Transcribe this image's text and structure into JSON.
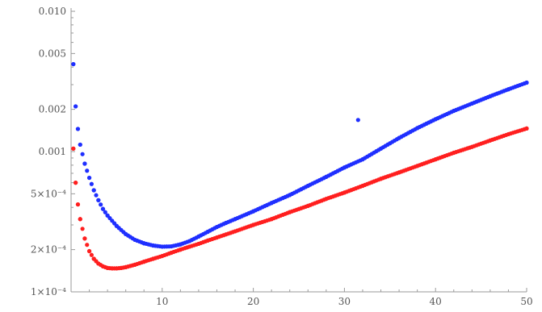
{
  "chart_data": {
    "type": "scatter",
    "title": "",
    "xlabel": "",
    "ylabel": "",
    "x_scale": "linear",
    "y_scale": "log",
    "xlim": [
      0,
      50
    ],
    "ylim": [
      0.0001,
      0.01
    ],
    "grid": false,
    "x_ticks": [
      {
        "value": 10,
        "label": "10"
      },
      {
        "value": 20,
        "label": "20"
      },
      {
        "value": 30,
        "label": "30"
      },
      {
        "value": 40,
        "label": "40"
      },
      {
        "value": 50,
        "label": "50"
      }
    ],
    "y_ticks": [
      {
        "value": 0.0001,
        "label": "1×10⁻⁴"
      },
      {
        "value": 0.0002,
        "label": "2×10⁻⁴"
      },
      {
        "value": 0.0005,
        "label": "5×10⁻⁴"
      },
      {
        "value": 0.001,
        "label": "0.001"
      },
      {
        "value": 0.002,
        "label": "0.002"
      },
      {
        "value": 0.005,
        "label": "0.005"
      },
      {
        "value": 0.01,
        "label": "0.010"
      }
    ],
    "series": [
      {
        "color": "#1f2fff",
        "x": [
          0.25,
          0.5,
          0.75,
          1.0,
          1.5,
          2.0,
          2.5,
          3.0,
          3.5,
          4.0,
          5.0,
          6.0,
          7.0,
          8.0,
          9.0,
          10.0,
          11.0,
          12.0,
          13.0,
          14.0,
          15.0,
          16.0,
          17.0,
          18.0,
          20.0,
          22.0,
          24.0,
          26.0,
          28.0,
          30.0,
          31.5,
          32.0,
          34.0,
          36.0,
          38.0,
          40.0,
          42.0,
          44.0,
          46.0,
          48.0,
          50.0
        ],
        "y": [
          0.0042,
          0.0021,
          0.00145,
          0.00112,
          0.00082,
          0.00065,
          0.00053,
          0.00045,
          0.00039,
          0.00035,
          0.000295,
          0.000258,
          0.000235,
          0.000222,
          0.000214,
          0.00021,
          0.000211,
          0.000218,
          0.00023,
          0.000248,
          0.000268,
          0.00029,
          0.00031,
          0.00033,
          0.000375,
          0.00043,
          0.00049,
          0.00057,
          0.00066,
          0.00077,
          0.00168,
          0.00088,
          0.00105,
          0.00125,
          0.00147,
          0.0017,
          0.00195,
          0.0022,
          0.00248,
          0.00278,
          0.0031
        ]
      },
      {
        "color": "#ff1f1f",
        "x": [
          0.25,
          0.5,
          0.75,
          1.0,
          1.5,
          2.0,
          2.5,
          3.0,
          3.5,
          4.0,
          4.5,
          5.0,
          5.5,
          6.0,
          7.0,
          8.0,
          9.0,
          10.0,
          11.0,
          12.0,
          13.0,
          14.0,
          15.0,
          16.0,
          18.0,
          20.0,
          22.0,
          24.0,
          26.0,
          28.0,
          30.0,
          32.0,
          34.0,
          36.0,
          38.0,
          40.0,
          42.0,
          44.0,
          46.0,
          48.0,
          50.0
        ],
        "y": [
          0.00105,
          0.0006,
          0.00042,
          0.00033,
          0.00024,
          0.000195,
          0.000172,
          0.000159,
          0.000152,
          0.000148,
          0.000147,
          0.000147,
          0.000148,
          0.00015,
          0.000156,
          0.000164,
          0.000172,
          0.00018,
          0.00019,
          0.0002,
          0.00021,
          0.00022,
          0.000232,
          0.000244,
          0.00027,
          0.0003,
          0.00033,
          0.00037,
          0.00041,
          0.00046,
          0.00051,
          0.00057,
          0.00064,
          0.00071,
          0.00079,
          0.00088,
          0.00098,
          0.00108,
          0.0012,
          0.00133,
          0.00146
        ]
      }
    ]
  }
}
